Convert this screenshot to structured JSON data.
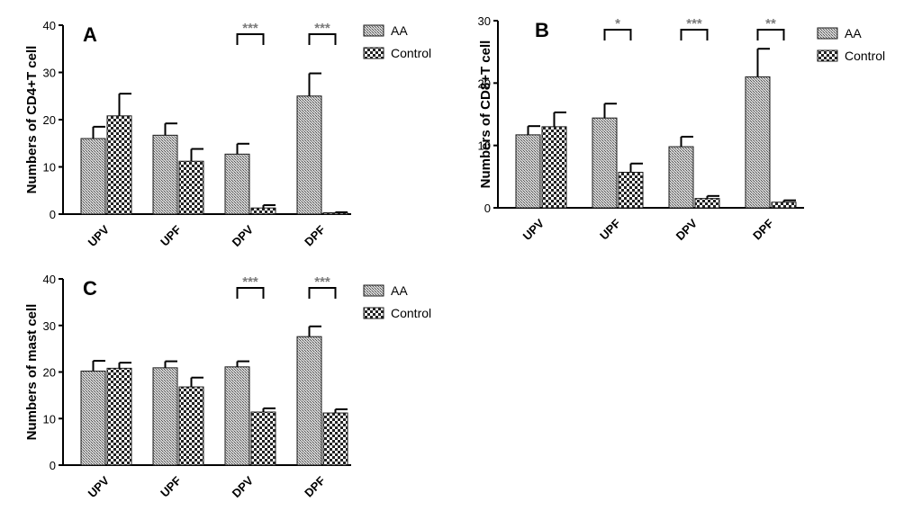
{
  "legend": {
    "series": [
      "AA",
      "Control"
    ]
  },
  "chart_data": [
    {
      "type": "bar",
      "panel": "A",
      "ylabel": "Numbers of CD4+T cell",
      "ylim": [
        0,
        40
      ],
      "yticks": [
        "0",
        "10",
        "20",
        "30",
        "40"
      ],
      "categories": [
        "UPV",
        "UPF",
        "DPV",
        "DPF"
      ],
      "series": [
        {
          "name": "AA",
          "values": [
            16.0,
            16.7,
            12.7,
            25.0
          ],
          "errors": [
            2.5,
            2.5,
            2.2,
            4.8
          ]
        },
        {
          "name": "Control",
          "values": [
            20.8,
            11.2,
            1.3,
            0.3
          ],
          "errors": [
            4.7,
            2.6,
            0.6,
            0.1
          ]
        }
      ],
      "significance": [
        {
          "category": "DPV",
          "label": "***"
        },
        {
          "category": "DPF",
          "label": "***"
        }
      ]
    },
    {
      "type": "bar",
      "panel": "B",
      "ylabel": "Numbers of CD8+T cell",
      "ylim": [
        0,
        30
      ],
      "yticks": [
        "0",
        "10",
        "20",
        "30"
      ],
      "categories": [
        "UPV",
        "UPF",
        "DPV",
        "DPF"
      ],
      "series": [
        {
          "name": "AA",
          "values": [
            11.7,
            14.4,
            9.8,
            21.0
          ],
          "errors": [
            1.4,
            2.3,
            1.6,
            4.5
          ]
        },
        {
          "name": "Control",
          "values": [
            13.0,
            5.7,
            1.5,
            0.9
          ],
          "errors": [
            2.3,
            1.4,
            0.4,
            0.3
          ]
        }
      ],
      "significance": [
        {
          "category": "UPF",
          "label": "*"
        },
        {
          "category": "DPV",
          "label": "***"
        },
        {
          "category": "DPF",
          "label": "**"
        }
      ]
    },
    {
      "type": "bar",
      "panel": "C",
      "ylabel": "Numbers of mast cell",
      "ylim": [
        0,
        40
      ],
      "yticks": [
        "0",
        "10",
        "20",
        "30",
        "40"
      ],
      "categories": [
        "UPV",
        "UPF",
        "DPV",
        "DPF"
      ],
      "series": [
        {
          "name": "AA",
          "values": [
            20.2,
            20.9,
            21.1,
            27.6
          ],
          "errors": [
            2.2,
            1.4,
            1.2,
            2.2
          ]
        },
        {
          "name": "Control",
          "values": [
            20.8,
            16.8,
            11.4,
            11.2
          ],
          "errors": [
            1.2,
            2.0,
            0.8,
            0.8
          ]
        }
      ],
      "significance": [
        {
          "category": "DPV",
          "label": "***"
        },
        {
          "category": "DPF",
          "label": "***"
        }
      ]
    }
  ]
}
